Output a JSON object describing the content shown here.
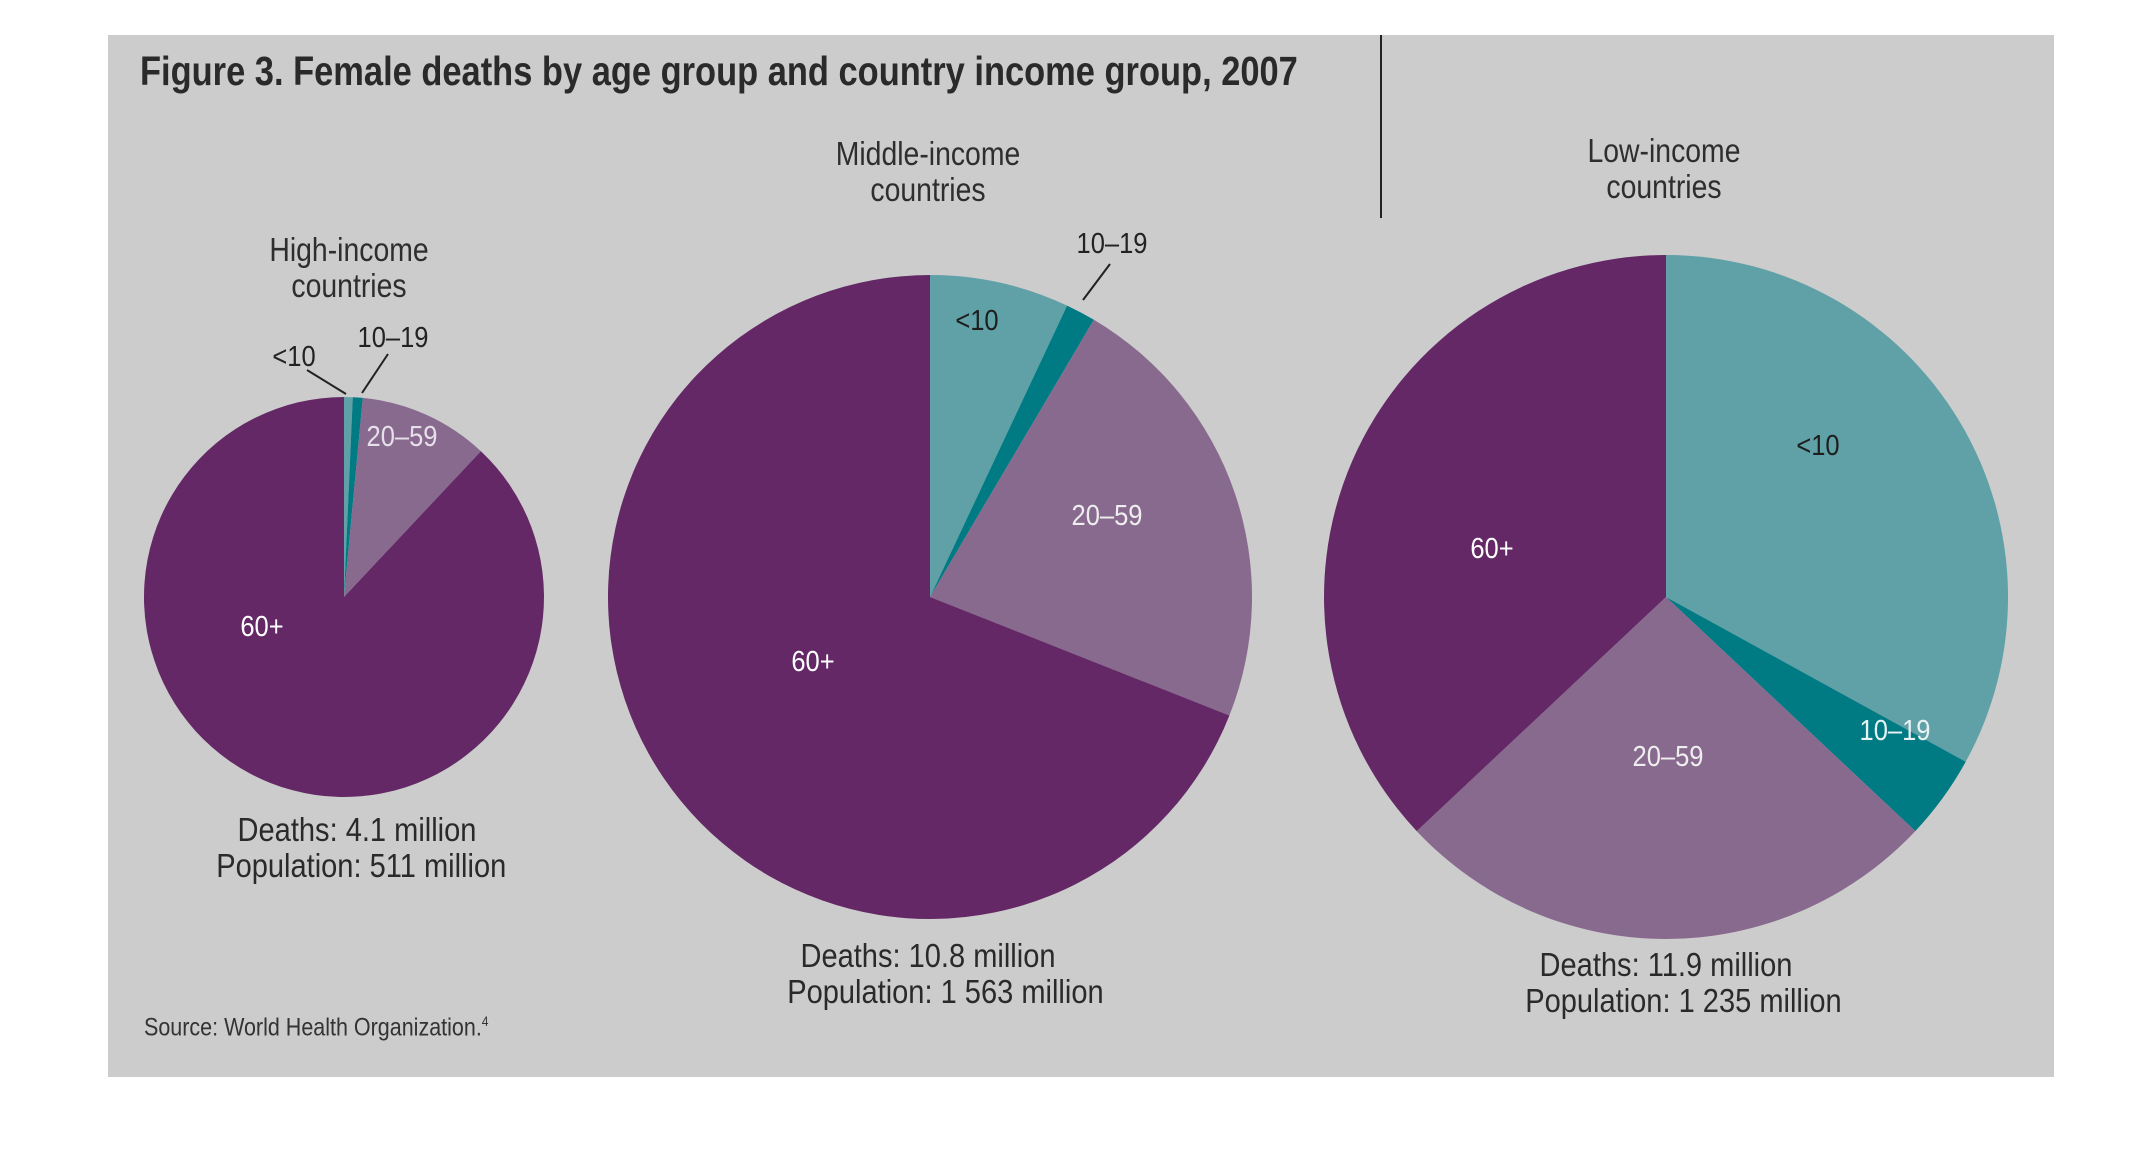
{
  "title": "Figure 3. Female deaths by age group and country income group, 2007",
  "source": {
    "text": "Source: World Health Organization.",
    "note": "4"
  },
  "colors": {
    "lt10": "#5fa1a7",
    "10to19": "#007b84",
    "20to59": "#896a8f",
    "60plus": "#632865",
    "panel": "#cccccc"
  },
  "chart_data": [
    {
      "type": "pie",
      "title": "High-income countries",
      "title_lines": [
        "High-income",
        "countries"
      ],
      "categories": [
        "<10",
        "10–19",
        "20–59",
        "60+"
      ],
      "values": [
        0.7,
        0.8,
        10.5,
        88.0
      ],
      "footer": [
        "Deaths: 4.1 million",
        "Population: 511 million"
      ]
    },
    {
      "type": "pie",
      "title": "Middle-income countries",
      "title_lines": [
        "Middle-income",
        "countries"
      ],
      "categories": [
        "<10",
        "10–19",
        "20–59",
        "60+"
      ],
      "values": [
        7.0,
        1.5,
        22.5,
        69.0
      ],
      "footer": [
        "Deaths: 10.8 million",
        "Population: 1 563 million"
      ]
    },
    {
      "type": "pie",
      "title": "Low-income countries",
      "title_lines": [
        "Low-income",
        "countries"
      ],
      "categories": [
        "<10",
        "10–19",
        "20–59",
        "60+"
      ],
      "values": [
        33.0,
        4.0,
        26.0,
        37.0
      ],
      "footer": [
        "Deaths: 11.9 million",
        "Population: 1 235 million"
      ]
    }
  ]
}
